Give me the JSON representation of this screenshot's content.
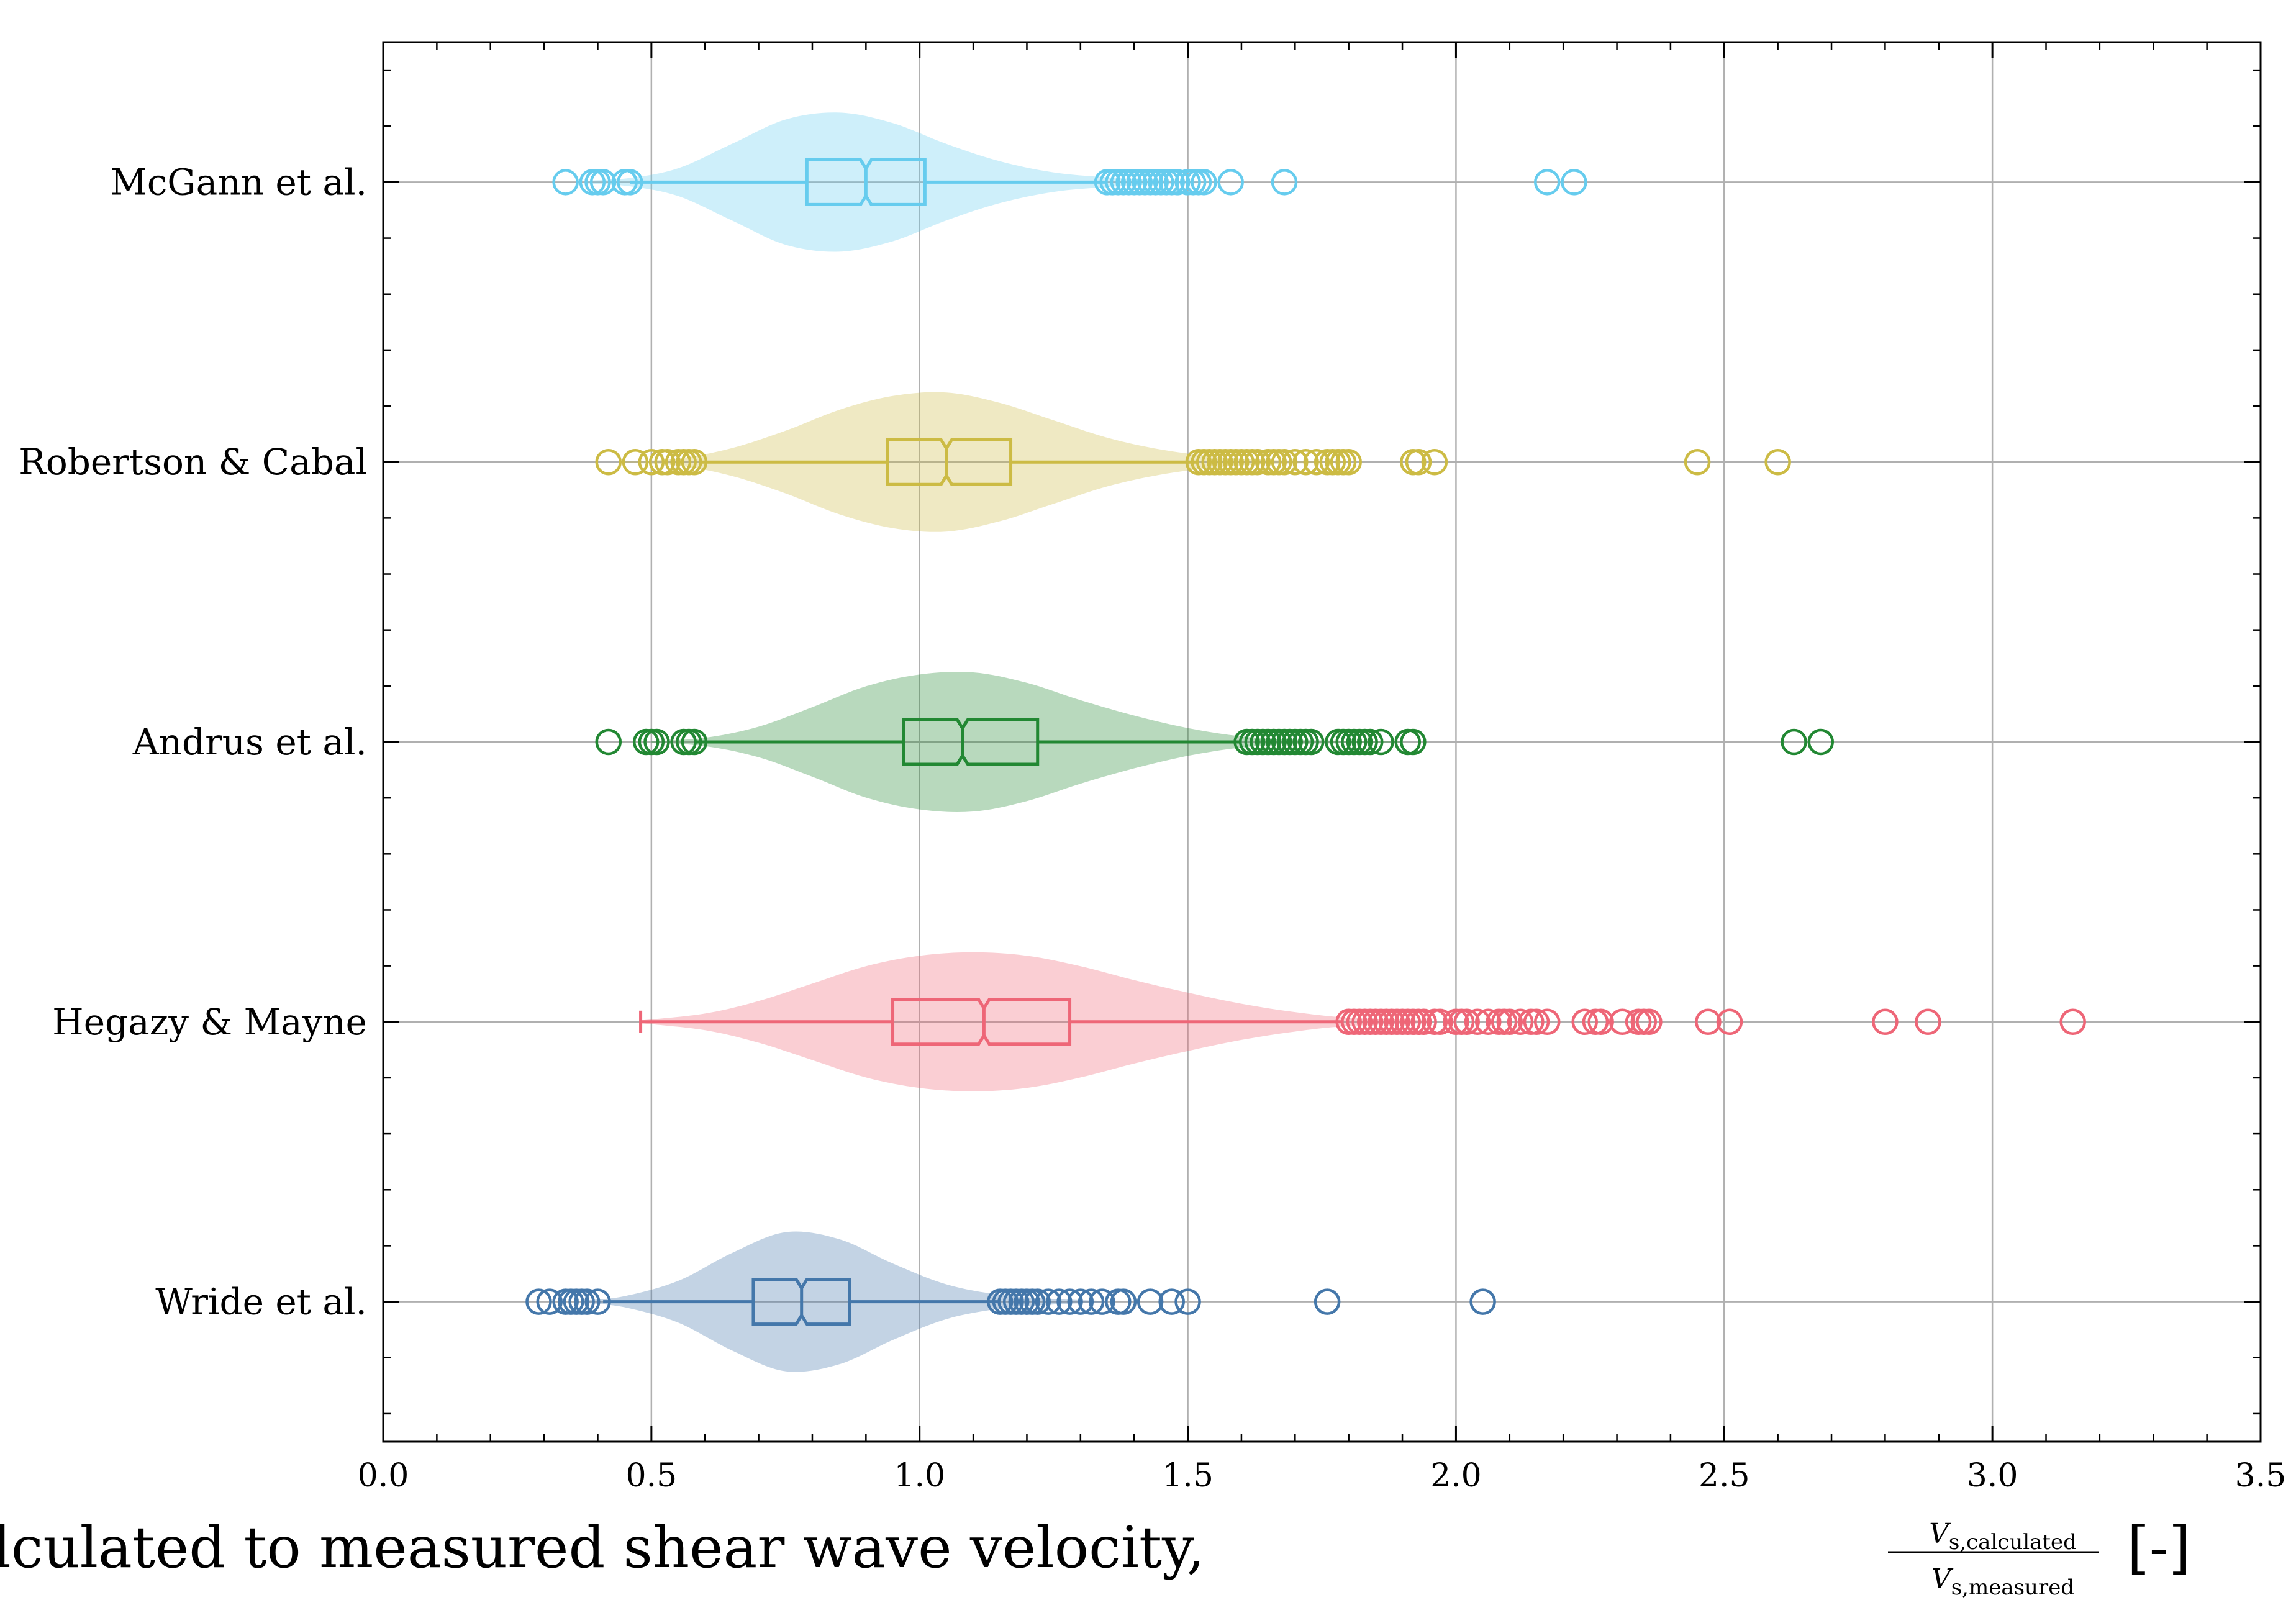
{
  "chart_data": {
    "type": "violin-box",
    "title": "",
    "xlabel": "Ratio of calculated to measured shear wave velocity,",
    "xlabel_fraction": {
      "numerator": "V",
      "numerator_sub": "s,calculated",
      "denominator": "V",
      "denominator_sub": "s,measured"
    },
    "xlabel_unit": "[-]",
    "xlim": [
      0.0,
      3.5
    ],
    "xticks": [
      "0.0",
      "0.5",
      "1.0",
      "1.5",
      "2.0",
      "2.5",
      "3.0",
      "3.5"
    ],
    "xtick_values": [
      0.0,
      0.5,
      1.0,
      1.5,
      2.0,
      2.5,
      3.0,
      3.5
    ],
    "grid": true,
    "series": [
      {
        "name": "McGann et al.",
        "color": "#66ccee",
        "box": {
          "q1": 0.79,
          "median": 0.9,
          "q3": 1.01,
          "whisker_low": 0.46,
          "whisker_high": 1.35,
          "notch_low": 0.89,
          "notch_high": 0.91
        },
        "violin": {
          "grid": [
            0.38,
            0.46,
            0.55,
            0.65,
            0.75,
            0.85,
            0.95,
            1.05,
            1.15,
            1.25,
            1.35,
            1.45,
            1.55
          ],
          "density": [
            0.02,
            0.06,
            0.2,
            0.55,
            0.9,
            1.0,
            0.85,
            0.55,
            0.3,
            0.14,
            0.07,
            0.03,
            0.01
          ]
        },
        "outliers": [
          0.34,
          0.39,
          0.4,
          0.41,
          0.45,
          0.46,
          1.35,
          1.36,
          1.37,
          1.38,
          1.39,
          1.4,
          1.41,
          1.42,
          1.43,
          1.44,
          1.45,
          1.46,
          1.47,
          1.48,
          1.5,
          1.51,
          1.52,
          1.53,
          1.58,
          1.68,
          2.17,
          2.22
        ]
      },
      {
        "name": "Robertson & Cabal",
        "color": "#ccbb44",
        "box": {
          "q1": 0.94,
          "median": 1.05,
          "q3": 1.17,
          "whisker_low": 0.59,
          "whisker_high": 1.52,
          "notch_low": 1.04,
          "notch_high": 1.06
        },
        "violin": {
          "grid": [
            0.45,
            0.55,
            0.65,
            0.75,
            0.85,
            0.95,
            1.05,
            1.15,
            1.25,
            1.35,
            1.45,
            1.55,
            1.65,
            1.8
          ],
          "density": [
            0.01,
            0.05,
            0.2,
            0.45,
            0.75,
            0.95,
            1.0,
            0.85,
            0.6,
            0.35,
            0.18,
            0.08,
            0.03,
            0.01
          ]
        },
        "outliers": [
          0.42,
          0.47,
          0.5,
          0.52,
          0.53,
          0.55,
          0.56,
          0.57,
          0.58,
          1.52,
          1.53,
          1.54,
          1.55,
          1.56,
          1.57,
          1.58,
          1.59,
          1.6,
          1.61,
          1.62,
          1.63,
          1.65,
          1.66,
          1.67,
          1.68,
          1.7,
          1.72,
          1.74,
          1.76,
          1.77,
          1.78,
          1.79,
          1.8,
          1.92,
          1.93,
          1.96,
          2.45,
          2.6
        ]
      },
      {
        "name": "Andrus et al.",
        "color": "#228833",
        "box": {
          "q1": 0.97,
          "median": 1.08,
          "q3": 1.22,
          "whisker_low": 0.58,
          "whisker_high": 1.6,
          "notch_low": 1.07,
          "notch_high": 1.09
        },
        "violin": {
          "grid": [
            0.5,
            0.6,
            0.7,
            0.8,
            0.9,
            1.0,
            1.1,
            1.2,
            1.3,
            1.4,
            1.5,
            1.6,
            1.7,
            1.9
          ],
          "density": [
            0.01,
            0.06,
            0.22,
            0.5,
            0.8,
            0.97,
            1.0,
            0.85,
            0.6,
            0.38,
            0.2,
            0.08,
            0.03,
            0.01
          ]
        },
        "outliers": [
          0.42,
          0.49,
          0.5,
          0.51,
          0.56,
          0.57,
          0.58,
          1.61,
          1.62,
          1.63,
          1.64,
          1.65,
          1.66,
          1.67,
          1.68,
          1.69,
          1.7,
          1.71,
          1.72,
          1.73,
          1.78,
          1.79,
          1.8,
          1.81,
          1.82,
          1.83,
          1.84,
          1.86,
          1.91,
          1.92,
          2.63,
          2.68
        ]
      },
      {
        "name": "Hegazy & Mayne",
        "color": "#ee6677",
        "box": {
          "q1": 0.95,
          "median": 1.12,
          "q3": 1.28,
          "whisker_low": 0.48,
          "whisker_high": 1.79,
          "notch_low": 1.11,
          "notch_high": 1.13
        },
        "violin": {
          "grid": [
            0.48,
            0.6,
            0.7,
            0.8,
            0.9,
            1.0,
            1.1,
            1.2,
            1.3,
            1.4,
            1.5,
            1.6,
            1.7,
            1.8,
            1.95
          ],
          "density": [
            0.02,
            0.12,
            0.3,
            0.55,
            0.8,
            0.95,
            1.0,
            0.95,
            0.8,
            0.6,
            0.42,
            0.26,
            0.14,
            0.06,
            0.02
          ]
        },
        "outliers": [
          1.8,
          1.81,
          1.82,
          1.83,
          1.84,
          1.85,
          1.86,
          1.87,
          1.88,
          1.89,
          1.9,
          1.91,
          1.92,
          1.93,
          1.94,
          1.96,
          1.97,
          2.0,
          2.01,
          2.02,
          2.04,
          2.06,
          2.08,
          2.09,
          2.1,
          2.12,
          2.14,
          2.15,
          2.17,
          2.24,
          2.26,
          2.27,
          2.31,
          2.34,
          2.35,
          2.36,
          2.47,
          2.51,
          2.8,
          2.88,
          3.15
        ]
      },
      {
        "name": "Wride et al.",
        "color": "#4477aa",
        "box": {
          "q1": 0.69,
          "median": 0.78,
          "q3": 0.87,
          "whisker_low": 0.41,
          "whisker_high": 1.15,
          "notch_low": 0.77,
          "notch_high": 0.79
        },
        "violin": {
          "grid": [
            0.38,
            0.45,
            0.55,
            0.65,
            0.75,
            0.85,
            0.95,
            1.05,
            1.15,
            1.25,
            1.35
          ],
          "density": [
            0.02,
            0.08,
            0.3,
            0.7,
            1.0,
            0.9,
            0.55,
            0.25,
            0.1,
            0.04,
            0.01
          ]
        },
        "outliers": [
          0.29,
          0.31,
          0.34,
          0.35,
          0.36,
          0.37,
          0.38,
          0.4,
          1.15,
          1.16,
          1.17,
          1.18,
          1.19,
          1.2,
          1.21,
          1.22,
          1.24,
          1.26,
          1.28,
          1.3,
          1.32,
          1.34,
          1.37,
          1.38,
          1.43,
          1.47,
          1.5,
          1.76,
          2.05
        ]
      }
    ]
  }
}
